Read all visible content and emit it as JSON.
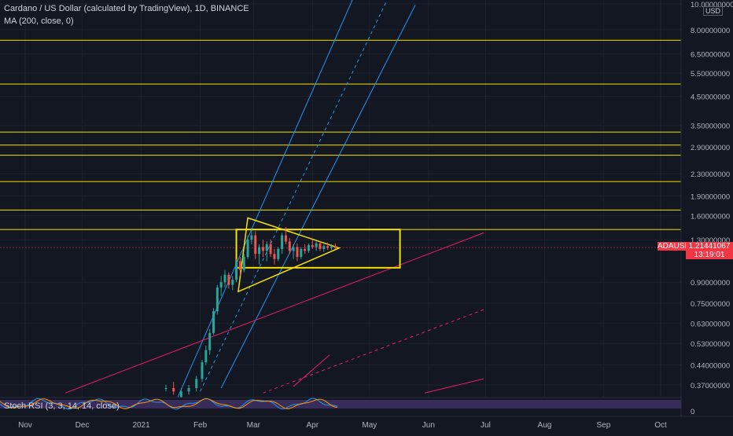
{
  "header": {
    "title": "Cardano / US Dollar (calculated by TradingView), 1D, BINANCE",
    "ma_label": "MA (200, close, 0)",
    "currency_badge": "USD"
  },
  "price_badge": {
    "symbol": "ADAUSD",
    "value": "1.21441067",
    "countdown": "13:19:01"
  },
  "stoch_rsi": {
    "label": "Stoch RSI (3, 3, 14, 14, close)",
    "axis_value": "0"
  },
  "colors": {
    "background": "#131722",
    "candle_up": "#26a69a",
    "candle_down": "#ef5350",
    "horizontal_levels": "#f5e100",
    "channel": "#2196f3",
    "trendline": "#e91e63",
    "box": "#f5e100",
    "rsi_band": "#7e57c2"
  },
  "chart_data": {
    "type": "candlestick",
    "title": "Cardano / US Dollar (calculated by TradingView), 1D, BINANCE",
    "y_scale": "log",
    "y_ticks": [
      "10.00000000",
      "8.00000000",
      "6.50000000",
      "5.50000000",
      "4.50000000",
      "3.50000000",
      "2.90000000",
      "2.30000000",
      "1.90000000",
      "1.60000000",
      "1.30000000",
      "0.90000000",
      "0.75000000",
      "0.63000000",
      "0.53000000",
      "0.44000000",
      "0.37000000"
    ],
    "x_ticks": [
      "Nov",
      "Dec",
      "2021",
      "Feb",
      "Mar",
      "Apr",
      "May",
      "Jun",
      "Jul",
      "Aug",
      "Sep",
      "Oct"
    ],
    "horizontal_levels": [
      7.3,
      5.0,
      3.3,
      2.95,
      2.7,
      2.15,
      1.68,
      1.42
    ],
    "last_price": 1.21441067,
    "candles": [
      {
        "d": "2021-01-14",
        "o": 0.36,
        "h": 0.37,
        "l": 0.35,
        "c": 0.36
      },
      {
        "d": "2021-01-18",
        "o": 0.36,
        "h": 0.38,
        "l": 0.34,
        "c": 0.35
      },
      {
        "d": "2021-01-22",
        "o": 0.33,
        "h": 0.36,
        "l": 0.32,
        "c": 0.35
      },
      {
        "d": "2021-01-26",
        "o": 0.35,
        "h": 0.37,
        "l": 0.34,
        "c": 0.36
      },
      {
        "d": "2021-01-30",
        "o": 0.36,
        "h": 0.4,
        "l": 0.35,
        "c": 0.39
      },
      {
        "d": "2021-02-02",
        "o": 0.39,
        "h": 0.46,
        "l": 0.38,
        "c": 0.45
      },
      {
        "d": "2021-02-04",
        "o": 0.45,
        "h": 0.52,
        "l": 0.44,
        "c": 0.5
      },
      {
        "d": "2021-02-06",
        "o": 0.5,
        "h": 0.6,
        "l": 0.48,
        "c": 0.58
      },
      {
        "d": "2021-02-08",
        "o": 0.58,
        "h": 0.72,
        "l": 0.57,
        "c": 0.7
      },
      {
        "d": "2021-02-10",
        "o": 0.7,
        "h": 0.88,
        "l": 0.68,
        "c": 0.86
      },
      {
        "d": "2021-02-12",
        "o": 0.86,
        "h": 0.95,
        "l": 0.8,
        "c": 0.9
      },
      {
        "d": "2021-02-14",
        "o": 0.9,
        "h": 1.0,
        "l": 0.86,
        "c": 0.96
      },
      {
        "d": "2021-02-16",
        "o": 0.96,
        "h": 0.98,
        "l": 0.85,
        "c": 0.88
      },
      {
        "d": "2021-02-18",
        "o": 0.88,
        "h": 0.95,
        "l": 0.84,
        "c": 0.92
      },
      {
        "d": "2021-02-20",
        "o": 0.92,
        "h": 1.1,
        "l": 0.9,
        "c": 1.08
      },
      {
        "d": "2021-02-22",
        "o": 1.08,
        "h": 1.12,
        "l": 0.95,
        "c": 1.0
      },
      {
        "d": "2021-02-24",
        "o": 1.0,
        "h": 1.15,
        "l": 0.98,
        "c": 1.12
      },
      {
        "d": "2021-02-26",
        "o": 1.12,
        "h": 1.35,
        "l": 1.1,
        "c": 1.3
      },
      {
        "d": "2021-02-28",
        "o": 1.3,
        "h": 1.42,
        "l": 1.25,
        "c": 1.35
      },
      {
        "d": "2021-03-02",
        "o": 1.35,
        "h": 1.4,
        "l": 1.1,
        "c": 1.15
      },
      {
        "d": "2021-03-04",
        "o": 1.15,
        "h": 1.25,
        "l": 1.05,
        "c": 1.22
      },
      {
        "d": "2021-03-06",
        "o": 1.22,
        "h": 1.3,
        "l": 1.12,
        "c": 1.18
      },
      {
        "d": "2021-03-08",
        "o": 1.18,
        "h": 1.28,
        "l": 1.08,
        "c": 1.25
      },
      {
        "d": "2021-03-10",
        "o": 1.25,
        "h": 1.3,
        "l": 1.12,
        "c": 1.15
      },
      {
        "d": "2021-03-12",
        "o": 1.15,
        "h": 1.2,
        "l": 1.05,
        "c": 1.1
      },
      {
        "d": "2021-03-14",
        "o": 1.1,
        "h": 1.22,
        "l": 1.08,
        "c": 1.2
      },
      {
        "d": "2021-03-16",
        "o": 1.2,
        "h": 1.38,
        "l": 1.15,
        "c": 1.35
      },
      {
        "d": "2021-03-18",
        "o": 1.35,
        "h": 1.45,
        "l": 1.25,
        "c": 1.28
      },
      {
        "d": "2021-03-20",
        "o": 1.28,
        "h": 1.32,
        "l": 1.15,
        "c": 1.18
      },
      {
        "d": "2021-03-22",
        "o": 1.18,
        "h": 1.25,
        "l": 1.1,
        "c": 1.22
      },
      {
        "d": "2021-03-24",
        "o": 1.22,
        "h": 1.26,
        "l": 1.08,
        "c": 1.12
      },
      {
        "d": "2021-03-26",
        "o": 1.12,
        "h": 1.22,
        "l": 1.1,
        "c": 1.2
      },
      {
        "d": "2021-03-28",
        "o": 1.2,
        "h": 1.25,
        "l": 1.15,
        "c": 1.18
      },
      {
        "d": "2021-03-30",
        "o": 1.18,
        "h": 1.26,
        "l": 1.16,
        "c": 1.24
      },
      {
        "d": "2021-04-01",
        "o": 1.24,
        "h": 1.3,
        "l": 1.2,
        "c": 1.22
      },
      {
        "d": "2021-04-03",
        "o": 1.22,
        "h": 1.28,
        "l": 1.18,
        "c": 1.26
      },
      {
        "d": "2021-04-05",
        "o": 1.26,
        "h": 1.28,
        "l": 1.18,
        "c": 1.2
      },
      {
        "d": "2021-04-07",
        "o": 1.2,
        "h": 1.25,
        "l": 1.17,
        "c": 1.23
      },
      {
        "d": "2021-04-09",
        "o": 1.23,
        "h": 1.27,
        "l": 1.19,
        "c": 1.21
      },
      {
        "d": "2021-04-11",
        "o": 1.21,
        "h": 1.25,
        "l": 1.19,
        "c": 1.23
      },
      {
        "d": "2021-04-13",
        "o": 1.23,
        "h": 1.26,
        "l": 1.2,
        "c": 1.21
      }
    ]
  }
}
